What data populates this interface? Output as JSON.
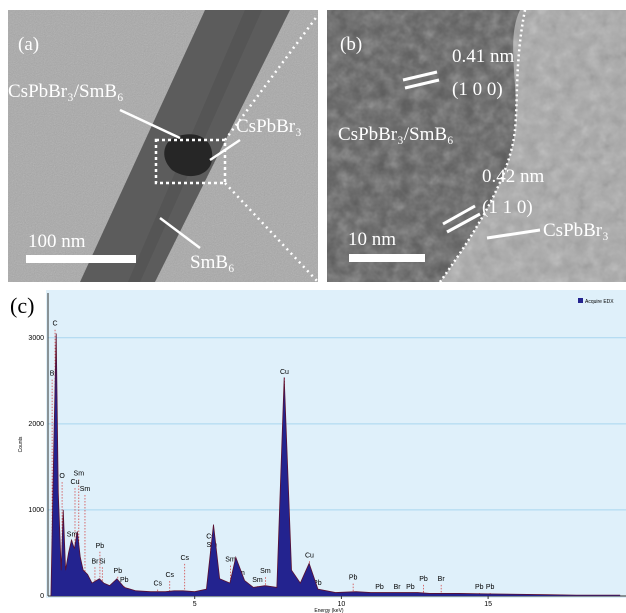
{
  "panels": {
    "a": {
      "label": "(a)",
      "composite": "CsPbBr₃/SmB₆",
      "perovskite": "CsPbBr₃",
      "substrate": "SmB₆",
      "scale": "100 nm"
    },
    "b": {
      "label": "(b)",
      "spacing1": "0.41 nm",
      "plane1": "(1 0 0)",
      "composite": "CsPbBr₃/SmB₆",
      "spacing2": "0.42 nm",
      "plane2": "(1 1 0)",
      "perovskite": "CsPbBr₃",
      "scale": "10 nm"
    },
    "c": {
      "label": "(c)"
    }
  },
  "chart_data": {
    "type": "line",
    "x_label": "Energy (keV)",
    "y_label": "Counts",
    "fill": true,
    "x": [
      0.1,
      0.2,
      0.28,
      0.35,
      0.45,
      0.52,
      0.6,
      0.7,
      0.8,
      0.9,
      1.0,
      1.1,
      1.2,
      1.35,
      1.5,
      1.75,
      1.9,
      2.1,
      2.35,
      2.6,
      3.0,
      3.5,
      4.0,
      4.3,
      4.6,
      5.0,
      5.4,
      5.64,
      5.85,
      6.2,
      6.4,
      6.7,
      7.0,
      7.4,
      7.8,
      8.05,
      8.3,
      8.6,
      8.9,
      9.2,
      9.8,
      10.5,
      11.0,
      11.6,
      12.6,
      13.0,
      14.0,
      15.0,
      16.0,
      17.0,
      18.0,
      19.5
    ],
    "series": [
      {
        "name": "Acquire EDX",
        "color": "#23238f",
        "values": [
          0,
          1800,
          3050,
          1200,
          300,
          1000,
          300,
          500,
          650,
          550,
          750,
          450,
          300,
          250,
          150,
          200,
          150,
          120,
          200,
          100,
          60,
          50,
          50,
          60,
          60,
          50,
          80,
          830,
          200,
          150,
          450,
          180,
          100,
          120,
          100,
          2540,
          300,
          150,
          380,
          80,
          40,
          50,
          40,
          40,
          40,
          30,
          30,
          25,
          20,
          15,
          10,
          10
        ]
      }
    ],
    "annotations": [
      {
        "label": "C",
        "x": 0.24,
        "y": 3140
      },
      {
        "label": "B",
        "x": 0.14,
        "y": 2560
      },
      {
        "label": "O",
        "x": 0.48,
        "y": 1370
      },
      {
        "label": "Sm",
        "x": 1.05,
        "y": 1400
      },
      {
        "label": "Cu",
        "x": 0.92,
        "y": 1300
      },
      {
        "label": "Sm",
        "x": 1.26,
        "y": 1220
      },
      {
        "label": "Sm",
        "x": 0.82,
        "y": 690
      },
      {
        "label": "Pb",
        "x": 1.77,
        "y": 560
      },
      {
        "label": "Br",
        "x": 1.6,
        "y": 380
      },
      {
        "label": "Si",
        "x": 1.85,
        "y": 380
      },
      {
        "label": "Pb",
        "x": 2.38,
        "y": 270
      },
      {
        "label": "Pb",
        "x": 2.6,
        "y": 160
      },
      {
        "label": "Cs",
        "x": 3.74,
        "y": 120
      },
      {
        "label": "Cs",
        "x": 4.15,
        "y": 220
      },
      {
        "label": "Cs",
        "x": 4.66,
        "y": 420
      },
      {
        "label": "Cs",
        "x": 5.54,
        "y": 670
      },
      {
        "label": "Sm",
        "x": 5.58,
        "y": 570
      },
      {
        "label": "Sm",
        "x": 6.22,
        "y": 400
      },
      {
        "label": "Sm",
        "x": 6.53,
        "y": 245
      },
      {
        "label": "Sm",
        "x": 7.14,
        "y": 160
      },
      {
        "label": "Sm",
        "x": 7.41,
        "y": 265
      },
      {
        "label": "Cu",
        "x": 8.06,
        "y": 2580
      },
      {
        "label": "Cu",
        "x": 8.91,
        "y": 450
      },
      {
        "label": "Pb",
        "x": 9.18,
        "y": 130
      },
      {
        "label": "Pb",
        "x": 10.4,
        "y": 190
      },
      {
        "label": "Pb",
        "x": 11.3,
        "y": 80
      },
      {
        "label": "Br",
        "x": 11.9,
        "y": 80
      },
      {
        "label": "Pb",
        "x": 12.35,
        "y": 80
      },
      {
        "label": "Pb",
        "x": 12.8,
        "y": 175
      },
      {
        "label": "Br",
        "x": 13.4,
        "y": 175
      },
      {
        "label": "Pb",
        "x": 14.7,
        "y": 80
      },
      {
        "label": "Pb",
        "x": 15.07,
        "y": 80
      }
    ],
    "xlim": [
      0,
      19.7
    ],
    "ylim": [
      0,
      3520
    ],
    "xticks": [
      5,
      10,
      15
    ],
    "yticks": [
      0,
      1000,
      2000,
      3000
    ],
    "grid": true,
    "legend": "top-right"
  }
}
